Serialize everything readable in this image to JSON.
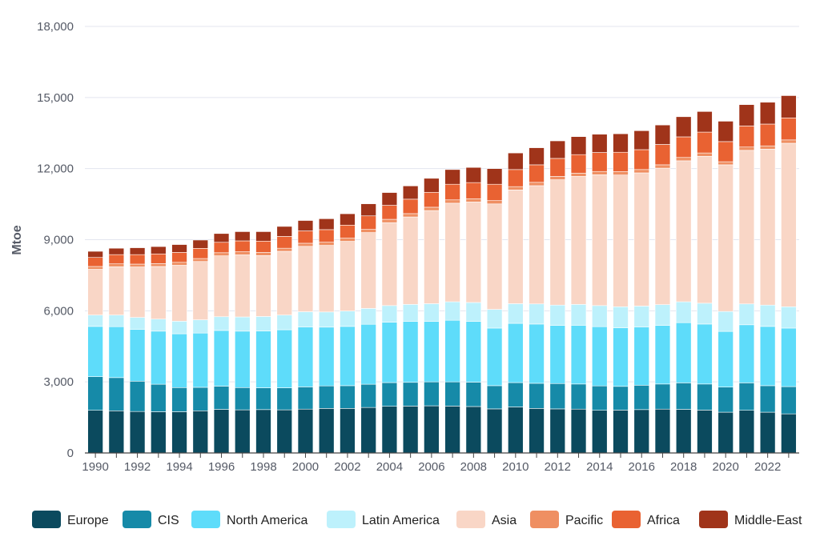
{
  "chart_data": {
    "type": "bar",
    "stacked": true,
    "title": "",
    "xlabel": "",
    "ylabel": "Mtoe",
    "ylim": [
      0,
      18000
    ],
    "yticks": [
      0,
      3000,
      6000,
      9000,
      12000,
      15000,
      18000
    ],
    "ytick_labels": [
      "0",
      "3,000",
      "6,000",
      "9,000",
      "12,000",
      "15,000",
      "18,000"
    ],
    "grid": true,
    "legend_position": "bottom",
    "x_tick_labels": [
      "1990",
      "1992",
      "1994",
      "1996",
      "1998",
      "2000",
      "2002",
      "2004",
      "2006",
      "2008",
      "2010",
      "2012",
      "2014",
      "2016",
      "2018",
      "2020",
      "2022"
    ],
    "categories": [
      "1990",
      "1991",
      "1992",
      "1993",
      "1994",
      "1995",
      "1996",
      "1997",
      "1998",
      "1999",
      "2000",
      "2001",
      "2002",
      "2003",
      "2004",
      "2005",
      "2006",
      "2007",
      "2008",
      "2009",
      "2010",
      "2011",
      "2012",
      "2013",
      "2014",
      "2015",
      "2016",
      "2017",
      "2018",
      "2019",
      "2020",
      "2021",
      "2022",
      "2023"
    ],
    "series": [
      {
        "name": "Europe",
        "color": "#0b4a5e",
        "values": [
          1800,
          1780,
          1750,
          1740,
          1740,
          1780,
          1840,
          1820,
          1830,
          1820,
          1850,
          1880,
          1880,
          1920,
          1970,
          1980,
          1990,
          1980,
          1960,
          1860,
          1940,
          1880,
          1860,
          1850,
          1800,
          1810,
          1830,
          1850,
          1840,
          1810,
          1720,
          1800,
          1720,
          1650
        ]
      },
      {
        "name": "CIS",
        "color": "#168aa8",
        "values": [
          1420,
          1400,
          1280,
          1160,
          1020,
          990,
          980,
          940,
          920,
          930,
          940,
          950,
          960,
          980,
          1000,
          1000,
          1010,
          1020,
          1030,
          980,
          1030,
          1060,
          1070,
          1060,
          1030,
          1000,
          1030,
          1060,
          1120,
          1100,
          1060,
          1160,
          1120,
          1150
        ]
      },
      {
        "name": "North America",
        "color": "#5edcfa",
        "values": [
          2120,
          2150,
          2190,
          2240,
          2270,
          2290,
          2350,
          2380,
          2400,
          2450,
          2530,
          2480,
          2500,
          2530,
          2550,
          2570,
          2550,
          2600,
          2560,
          2430,
          2500,
          2500,
          2450,
          2480,
          2500,
          2470,
          2460,
          2470,
          2540,
          2530,
          2350,
          2450,
          2500,
          2470
        ]
      },
      {
        "name": "Latin America",
        "color": "#bdf1fc",
        "values": [
          480,
          490,
          500,
          510,
          530,
          560,
          580,
          600,
          610,
          620,
          640,
          640,
          650,
          670,
          700,
          720,
          750,
          780,
          800,
          790,
          830,
          850,
          860,
          880,
          890,
          890,
          880,
          880,
          880,
          880,
          840,
          880,
          900,
          900
        ]
      },
      {
        "name": "Asia",
        "color": "#f9d6c6",
        "values": [
          1930,
          2040,
          2130,
          2220,
          2360,
          2460,
          2570,
          2620,
          2570,
          2690,
          2760,
          2810,
          2940,
          3200,
          3500,
          3690,
          3930,
          4160,
          4240,
          4450,
          4800,
          4990,
          5290,
          5400,
          5520,
          5560,
          5620,
          5760,
          5950,
          6200,
          6190,
          6480,
          6580,
          6900
        ]
      },
      {
        "name": "Pacific",
        "color": "#ef8f62",
        "values": [
          120,
          120,
          120,
          120,
          125,
          125,
          130,
          130,
          130,
          130,
          130,
          135,
          135,
          135,
          140,
          140,
          140,
          140,
          140,
          140,
          140,
          140,
          140,
          140,
          140,
          140,
          140,
          140,
          140,
          140,
          130,
          140,
          140,
          140
        ]
      },
      {
        "name": "Africa",
        "color": "#e96232",
        "values": [
          380,
          390,
          400,
          410,
          420,
          430,
          440,
          460,
          480,
          500,
          520,
          530,
          550,
          570,
          590,
          610,
          630,
          660,
          680,
          690,
          720,
          740,
          760,
          780,
          800,
          820,
          840,
          860,
          870,
          880,
          850,
          890,
          920,
          930
        ]
      },
      {
        "name": "Middle-East",
        "color": "#a0341a",
        "values": [
          260,
          270,
          290,
          310,
          330,
          350,
          370,
          390,
          400,
          420,
          440,
          460,
          480,
          510,
          540,
          560,
          590,
          620,
          640,
          660,
          700,
          720,
          740,
          760,
          770,
          780,
          800,
          820,
          850,
          870,
          860,
          900,
          920,
          940
        ]
      }
    ]
  }
}
